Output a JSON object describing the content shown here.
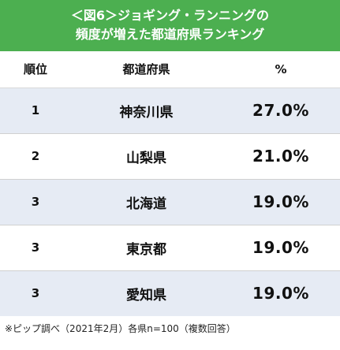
{
  "chart_data": {
    "type": "table",
    "title_lines": [
      "＜図6＞ジョギング・ランニングの",
      "頻度が増えた都道府県ランキング"
    ],
    "columns": [
      "順位",
      "都道府県",
      "%"
    ],
    "rows": [
      {
        "rank": "1",
        "prefecture": "神奈川県",
        "percent": "27.0%",
        "value": 27.0
      },
      {
        "rank": "2",
        "prefecture": "山梨県",
        "percent": "21.0%",
        "value": 21.0
      },
      {
        "rank": "3",
        "prefecture": "北海道",
        "percent": "19.0%",
        "value": 19.0
      },
      {
        "rank": "3",
        "prefecture": "東京都",
        "percent": "19.0%",
        "value": 19.0
      },
      {
        "rank": "3",
        "prefecture": "愛知県",
        "percent": "19.0%",
        "value": 19.0
      }
    ],
    "footnote": "※ピップ調べ（2021年2月）各県n=100（複数回答）"
  },
  "colors": {
    "title_band": "#4caf50",
    "row_stripe": "#e6ebf4",
    "title_text": "#ffffff"
  }
}
